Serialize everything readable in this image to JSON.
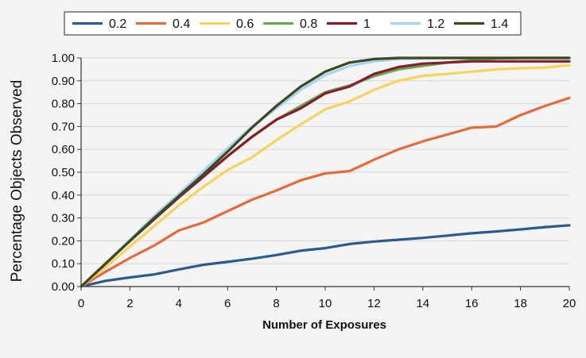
{
  "chart_data": {
    "type": "line",
    "xlabel": "Number of Exposures",
    "ylabel": "Percentage  Objects  Observed",
    "xlim": [
      0,
      20
    ],
    "ylim": [
      0,
      1.0
    ],
    "x_ticks": [
      0,
      2,
      4,
      6,
      8,
      10,
      12,
      14,
      16,
      18,
      20
    ],
    "x_tick_labels": [
      "0",
      "2",
      "4",
      "6",
      "8",
      "10",
      "12",
      "14",
      "16",
      "18",
      "20"
    ],
    "y_ticks": [
      0,
      0.1,
      0.2,
      0.3,
      0.4,
      0.5,
      0.6,
      0.7,
      0.8,
      0.9,
      1.0
    ],
    "y_tick_labels": [
      "0.00",
      "0.10",
      "0.20",
      "0.30",
      "0.40",
      "0.50",
      "0.60",
      "0.70",
      "0.80",
      "0.90",
      "1.00"
    ],
    "grid": "horizontal",
    "legend_placement": "top",
    "x": [
      0,
      1,
      2,
      3,
      4,
      5,
      6,
      7,
      8,
      9,
      10,
      11,
      12,
      13,
      14,
      15,
      16,
      17,
      18,
      19,
      20
    ],
    "series": [
      {
        "name": "0.2",
        "color": "#2a5a8f",
        "values": [
          0.0,
          0.025,
          0.04,
          0.053,
          0.075,
          0.095,
          0.108,
          0.122,
          0.138,
          0.157,
          0.168,
          0.186,
          0.197,
          0.205,
          0.213,
          0.223,
          0.233,
          0.241,
          0.25,
          0.26,
          0.268
        ]
      },
      {
        "name": "0.4",
        "color": "#e8693a",
        "values": [
          0.0,
          0.065,
          0.125,
          0.18,
          0.245,
          0.28,
          0.33,
          0.38,
          0.42,
          0.465,
          0.495,
          0.505,
          0.555,
          0.6,
          0.635,
          0.665,
          0.695,
          0.7,
          0.75,
          0.79,
          0.825
        ]
      },
      {
        "name": "0.6",
        "color": "#f7d35a",
        "values": [
          0.0,
          0.085,
          0.175,
          0.265,
          0.355,
          0.435,
          0.51,
          0.565,
          0.64,
          0.71,
          0.775,
          0.81,
          0.86,
          0.9,
          0.922,
          0.93,
          0.94,
          0.95,
          0.955,
          0.958,
          0.968
        ]
      },
      {
        "name": "0.8",
        "color": "#6aa84f",
        "values": [
          0.0,
          0.1,
          0.2,
          0.295,
          0.39,
          0.48,
          0.57,
          0.655,
          0.73,
          0.79,
          0.85,
          0.88,
          0.92,
          0.95,
          0.965,
          0.98,
          0.99,
          0.998,
          1.0,
          1.0,
          1.0
        ]
      },
      {
        "name": "1",
        "color": "#8b1a2b",
        "values": [
          0.0,
          0.1,
          0.2,
          0.295,
          0.39,
          0.48,
          0.57,
          0.655,
          0.73,
          0.78,
          0.845,
          0.875,
          0.93,
          0.96,
          0.975,
          0.98,
          0.985,
          0.985,
          0.985,
          0.985,
          0.985
        ]
      },
      {
        "name": "1.2",
        "color": "#a6d4f5",
        "values": [
          0.0,
          0.1,
          0.205,
          0.31,
          0.405,
          0.505,
          0.605,
          0.7,
          0.78,
          0.86,
          0.925,
          0.965,
          0.985,
          0.995,
          0.998,
          1.0,
          1.0,
          1.0,
          1.0,
          1.0,
          1.0
        ]
      },
      {
        "name": "1.4",
        "color": "#3b4a1c",
        "values": [
          0.0,
          0.1,
          0.2,
          0.3,
          0.395,
          0.49,
          0.59,
          0.695,
          0.79,
          0.875,
          0.94,
          0.98,
          0.995,
          1.0,
          1.0,
          1.0,
          1.0,
          1.0,
          1.0,
          1.0,
          1.0
        ]
      }
    ]
  }
}
